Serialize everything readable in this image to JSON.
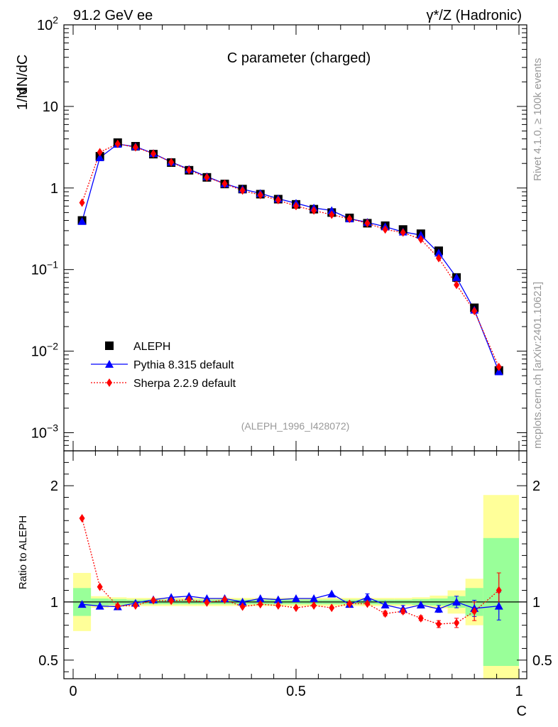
{
  "header": {
    "left": "91.2 GeV ee",
    "right": "γ*/Z (Hadronic)"
  },
  "side": {
    "rivet": "Rivet 4.1.0, ≥ 100k events",
    "mcplots": "mcplots.cern.ch [arXiv:2401.10621]"
  },
  "chart_data": [
    {
      "type": "line",
      "title": "C parameter (charged)",
      "analysis_tag": "(ALEPH_1996_I428072)",
      "xlabel": "C",
      "ylabel_parts": [
        "1/N",
        "dN/dC"
      ],
      "yscale": "log",
      "xlim": [
        0,
        1
      ],
      "ylim": [
        0.0006,
        100
      ],
      "ytick_labels": [
        {
          "value": 100,
          "base": "10",
          "exp": "2"
        },
        {
          "value": 10,
          "base": "10",
          "exp": ""
        },
        {
          "value": 1,
          "base": "1",
          "exp": ""
        },
        {
          "value": 0.1,
          "base": "10",
          "exp": "−1"
        },
        {
          "value": 0.01,
          "base": "10",
          "exp": "−2"
        },
        {
          "value": 0.001,
          "base": "10",
          "exp": "−3"
        }
      ],
      "x": [
        0.02,
        0.06,
        0.1,
        0.14,
        0.18,
        0.22,
        0.26,
        0.3,
        0.34,
        0.38,
        0.42,
        0.46,
        0.5,
        0.54,
        0.58,
        0.62,
        0.66,
        0.7,
        0.74,
        0.78,
        0.82,
        0.86,
        0.9,
        0.955
      ],
      "legend": [
        "ALEPH",
        "Pythia 8.315 default",
        "Sherpa 2.2.9 default"
      ],
      "series": [
        {
          "name": "ALEPH",
          "color": "#000000",
          "marker": "square",
          "values": [
            0.4,
            2.45,
            3.6,
            3.25,
            2.6,
            2.05,
            1.65,
            1.35,
            1.12,
            0.97,
            0.84,
            0.73,
            0.63,
            0.55,
            0.5,
            0.43,
            0.37,
            0.345,
            0.31,
            0.275,
            0.17,
            0.08,
            0.034,
            0.0058
          ]
        },
        {
          "name": "Pythia 8.315 default",
          "color": "#0000ff",
          "marker": "triangle",
          "line": "solid",
          "values": [
            0.39,
            2.36,
            3.45,
            3.22,
            2.65,
            2.08,
            1.7,
            1.38,
            1.13,
            0.97,
            0.86,
            0.74,
            0.65,
            0.57,
            0.53,
            0.42,
            0.38,
            0.335,
            0.29,
            0.265,
            0.16,
            0.08,
            0.032,
            0.0056
          ]
        },
        {
          "name": "Sherpa 2.2.9 default",
          "color": "#ff0000",
          "marker": "diamond",
          "line": "dotted",
          "values": [
            0.66,
            2.75,
            3.48,
            3.15,
            2.64,
            2.07,
            1.66,
            1.35,
            1.13,
            0.93,
            0.82,
            0.71,
            0.6,
            0.53,
            0.47,
            0.42,
            0.37,
            0.31,
            0.285,
            0.235,
            0.138,
            0.065,
            0.031,
            0.0064
          ]
        }
      ]
    },
    {
      "type": "line",
      "ylabel": "Ratio to ALEPH",
      "xlabel": "C",
      "xlim": [
        0,
        1
      ],
      "ylim": [
        0.34,
        2.3
      ],
      "yticks": [
        0.5,
        1,
        2
      ],
      "ytick_labels": [
        "0.5",
        "1",
        "2"
      ],
      "xticks": [
        0,
        0.5,
        1
      ],
      "xtick_labels": [
        "0",
        "0.5",
        "1"
      ],
      "bins": [
        [
          0,
          0.04
        ],
        [
          0.04,
          0.08
        ],
        [
          0.08,
          0.12
        ],
        [
          0.12,
          0.16
        ],
        [
          0.16,
          0.2
        ],
        [
          0.2,
          0.24
        ],
        [
          0.24,
          0.28
        ],
        [
          0.28,
          0.32
        ],
        [
          0.32,
          0.36
        ],
        [
          0.36,
          0.4
        ],
        [
          0.4,
          0.44
        ],
        [
          0.44,
          0.48
        ],
        [
          0.48,
          0.52
        ],
        [
          0.52,
          0.56
        ],
        [
          0.56,
          0.6
        ],
        [
          0.6,
          0.64
        ],
        [
          0.64,
          0.68
        ],
        [
          0.68,
          0.72
        ],
        [
          0.72,
          0.76
        ],
        [
          0.76,
          0.8
        ],
        [
          0.8,
          0.84
        ],
        [
          0.84,
          0.88
        ],
        [
          0.88,
          0.92
        ],
        [
          0.92,
          1.0
        ]
      ],
      "band_1sigma": [
        0.12,
        0.03,
        0.025,
        0.02,
        0.02,
        0.02,
        0.02,
        0.02,
        0.02,
        0.02,
        0.02,
        0.02,
        0.02,
        0.02,
        0.02,
        0.02,
        0.02,
        0.02,
        0.02,
        0.025,
        0.03,
        0.05,
        0.12,
        0.55
      ],
      "band_2sigma": [
        0.25,
        0.05,
        0.04,
        0.035,
        0.035,
        0.035,
        0.035,
        0.035,
        0.035,
        0.035,
        0.035,
        0.035,
        0.035,
        0.035,
        0.035,
        0.035,
        0.035,
        0.035,
        0.035,
        0.04,
        0.055,
        0.1,
        0.2,
        0.92
      ],
      "x": [
        0.02,
        0.06,
        0.1,
        0.14,
        0.18,
        0.22,
        0.26,
        0.3,
        0.34,
        0.38,
        0.42,
        0.46,
        0.5,
        0.54,
        0.58,
        0.62,
        0.66,
        0.7,
        0.74,
        0.78,
        0.82,
        0.86,
        0.9,
        0.955
      ],
      "series": [
        {
          "name": "Pythia 8.315 default",
          "color": "#0000ff",
          "marker": "triangle",
          "line": "solid",
          "values": [
            0.98,
            0.965,
            0.96,
            0.99,
            1.02,
            1.04,
            1.05,
            1.03,
            1.03,
            1.0,
            1.03,
            1.02,
            1.03,
            1.03,
            1.07,
            0.98,
            1.04,
            0.975,
            0.94,
            0.975,
            0.94,
            1.0,
            0.945,
            0.965
          ],
          "err": [
            0,
            0,
            0,
            0,
            0,
            0,
            0,
            0,
            0,
            0,
            0,
            0,
            0,
            0,
            0,
            0,
            0.03,
            0,
            0.03,
            0,
            0.03,
            0.05,
            0.07,
            0.12
          ]
        },
        {
          "name": "Sherpa 2.2.9 default",
          "color": "#ff0000",
          "marker": "diamond",
          "line": "dotted",
          "values": [
            1.72,
            1.13,
            0.965,
            0.97,
            1.015,
            1.01,
            1.02,
            0.995,
            1.02,
            0.96,
            0.98,
            0.97,
            0.95,
            0.97,
            0.95,
            0.985,
            0.985,
            0.9,
            0.92,
            0.86,
            0.81,
            0.82,
            0.92,
            1.1
          ],
          "err": [
            0,
            0,
            0,
            0,
            0,
            0,
            0,
            0,
            0,
            0,
            0,
            0,
            0,
            0,
            0,
            0,
            0,
            0.02,
            0.02,
            0.02,
            0.03,
            0.04,
            0.08,
            0.15
          ]
        }
      ]
    }
  ]
}
